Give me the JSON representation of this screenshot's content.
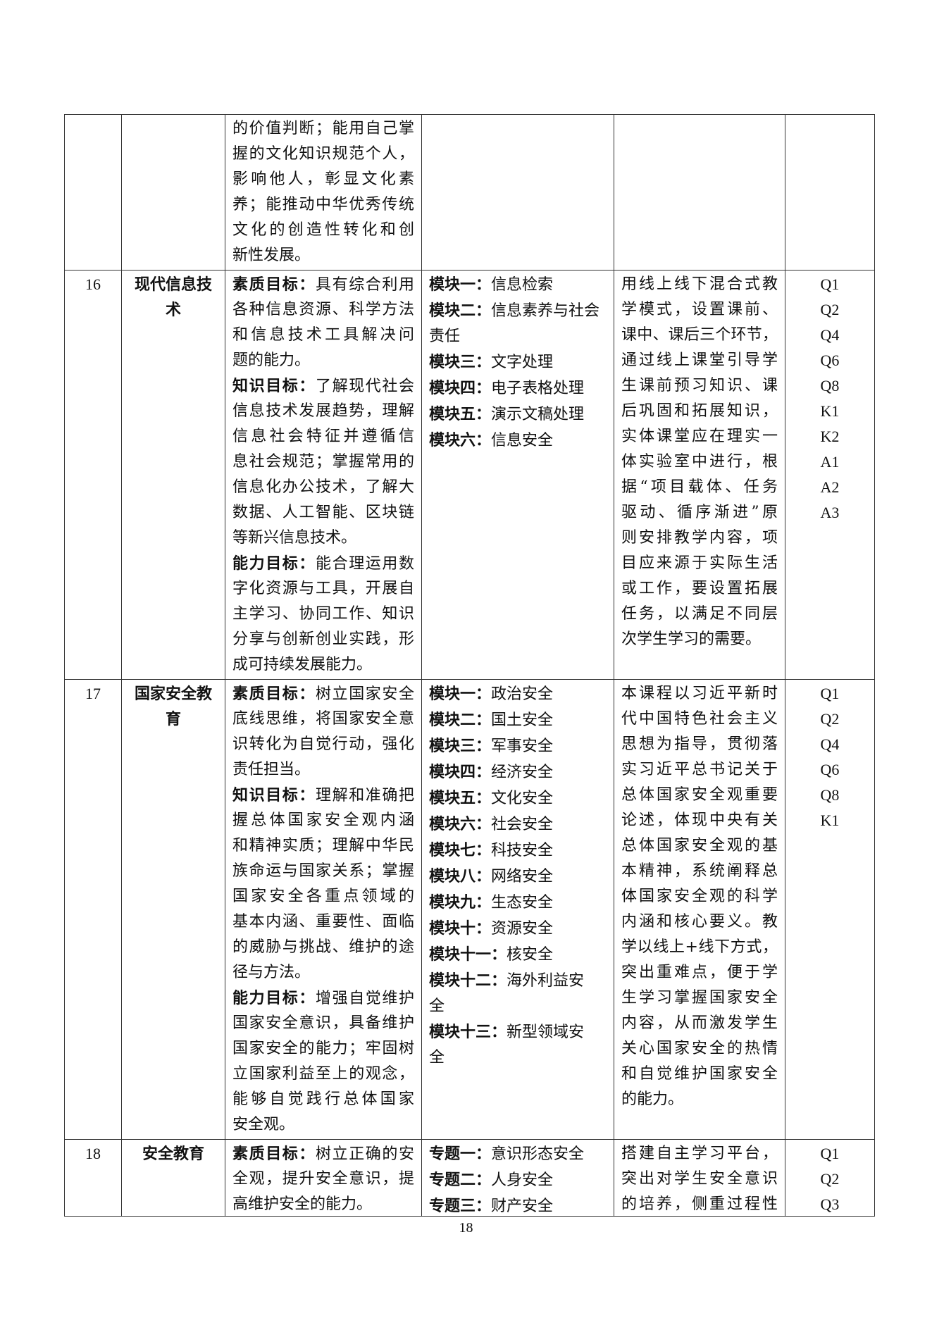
{
  "rows": [
    {
      "no": "",
      "name": "",
      "objectives": [
        {
          "b": "",
          "t": "的价值判断；能用自己掌"
        },
        {
          "b": "",
          "t": "握的文化知识规范个人，"
        },
        {
          "b": "",
          "t": "影响他人，彰显文化素"
        },
        {
          "b": "",
          "t": "养；能推动中华优秀传统"
        },
        {
          "b": "",
          "t": "文化的创造性转化和创"
        },
        {
          "b": "",
          "t": "新性发展。"
        }
      ],
      "modules": [],
      "method": [],
      "codes": []
    },
    {
      "no": "16",
      "name": "现代信息技术",
      "objectives": [
        {
          "b": "素质目标：",
          "t": "具有综合利用"
        },
        {
          "b": "",
          "t": "各种信息资源、科学方法"
        },
        {
          "b": "",
          "t": "和信息技术工具解决问"
        },
        {
          "b": "",
          "t": "题的能力。"
        },
        {
          "b": "知识目标：",
          "t": "了解现代社会"
        },
        {
          "b": "",
          "t": "信息技术发展趋势，理解"
        },
        {
          "b": "",
          "t": "信息社会特征并遵循信"
        },
        {
          "b": "",
          "t": "息社会规范；掌握常用的"
        },
        {
          "b": "",
          "t": "信息化办公技术，了解大"
        },
        {
          "b": "",
          "t": "数据、人工智能、区块链"
        },
        {
          "b": "",
          "t": "等新兴信息技术。"
        },
        {
          "b": "能力目标：",
          "t": "能合理运用数"
        },
        {
          "b": "",
          "t": "字化资源与工具，开展自"
        },
        {
          "b": "",
          "t": "主学习、协同工作、知识"
        },
        {
          "b": "",
          "t": "分享与创新创业实践，形"
        },
        {
          "b": "",
          "t": "成可持续发展能力。"
        }
      ],
      "modules": [
        {
          "b": "模块一：",
          "t": "信息检索"
        },
        {
          "b": "模块二：",
          "t": "信息素养与社会"
        },
        {
          "b": "",
          "t": "责任"
        },
        {
          "b": "模块三：",
          "t": "文字处理"
        },
        {
          "b": "模块四：",
          "t": "电子表格处理"
        },
        {
          "b": "模块五：",
          "t": "演示文稿处理"
        },
        {
          "b": "模块六：",
          "t": "信息安全"
        }
      ],
      "method": [
        "用线上线下混合式教",
        "学模式，设置课前、",
        "课中、课后三个环节，",
        "通过线上课堂引导学",
        "生课前预习知识、课",
        "后巩固和拓展知识，",
        "实体课堂应在理实一",
        "体实验室中进行，根",
        "据“项目载体、任务",
        "驱动、循序渐进”原",
        "则安排教学内容，项",
        "目应来源于实际生活",
        "或工作，要设置拓展",
        "任务，以满足不同层",
        "次学生学习的需要。"
      ],
      "codes": [
        "Q1",
        "Q2",
        "Q4",
        "Q6",
        "Q8",
        "K1",
        "K2",
        "A1",
        "A2",
        "A3"
      ]
    },
    {
      "no": "17",
      "name": "国家安全教育",
      "objectives": [
        {
          "b": "素质目标：",
          "t": "树立国家安全"
        },
        {
          "b": "",
          "t": "底线思维，将国家安全意"
        },
        {
          "b": "",
          "t": "识转化为自觉行动，强化"
        },
        {
          "b": "",
          "t": "责任担当。"
        },
        {
          "b": "知识目标：",
          "t": "理解和准确把"
        },
        {
          "b": "",
          "t": "握总体国家安全观内涵"
        },
        {
          "b": "",
          "t": "和精神实质；理解中华民"
        },
        {
          "b": "",
          "t": "族命运与国家关系；掌握"
        },
        {
          "b": "",
          "t": "国家安全各重点领域的"
        },
        {
          "b": "",
          "t": "基本内涵、重要性、面临"
        },
        {
          "b": "",
          "t": "的威胁与挑战、维护的途"
        },
        {
          "b": "",
          "t": "径与方法。"
        },
        {
          "b": "能力目标：",
          "t": "增强自觉维护"
        },
        {
          "b": "",
          "t": "国家安全意识，具备维护"
        },
        {
          "b": "",
          "t": "国家安全的能力；牢固树"
        },
        {
          "b": "",
          "t": "立国家利益至上的观念，"
        },
        {
          "b": "",
          "t": "能够自觉践行总体国家"
        },
        {
          "b": "",
          "t": "安全观。"
        }
      ],
      "modules": [
        {
          "b": "模块一：",
          "t": "政治安全"
        },
        {
          "b": "模块二：",
          "t": "国土安全"
        },
        {
          "b": "模块三：",
          "t": "军事安全"
        },
        {
          "b": "模块四：",
          "t": "经济安全"
        },
        {
          "b": "模块五：",
          "t": "文化安全"
        },
        {
          "b": "模块六：",
          "t": "社会安全"
        },
        {
          "b": "模块七：",
          "t": "科技安全"
        },
        {
          "b": "模块八：",
          "t": "网络安全"
        },
        {
          "b": "模块九：",
          "t": "生态安全"
        },
        {
          "b": "模块十：",
          "t": "资源安全"
        },
        {
          "b": "模块十一：",
          "t": "核安全"
        },
        {
          "b": "模块十二：",
          "t": "海外利益安"
        },
        {
          "b": "",
          "t": "全"
        },
        {
          "b": "模块十三：",
          "t": "新型领域安"
        },
        {
          "b": "",
          "t": "全"
        }
      ],
      "method": [
        "本课程以习近平新时",
        "代中国特色社会主义",
        "思想为指导，贯彻落",
        "实习近平总书记关于",
        "总体国家安全观重要",
        "论述，体现中央有关",
        "总体国家安全观的基",
        "本精神，系统阐释总",
        "体国家安全观的科学",
        "内涵和核心要义。教",
        "学以线上+线下方式，",
        "突出重难点，便于学",
        "生学习掌握国家安全",
        "内容，从而激发学生",
        "关心国家安全的热情",
        "和自觉维护国家安全",
        "的能力。"
      ],
      "codes": [
        "Q1",
        "Q2",
        "Q4",
        "Q6",
        "Q8",
        "K1"
      ]
    },
    {
      "no": "18",
      "name": "安全教育",
      "objectives": [
        {
          "b": "素质目标：",
          "t": "树立正确的安"
        },
        {
          "b": "",
          "t": "全观，提升安全意识，提"
        },
        {
          "b": "",
          "t": "高维护安全的能力。"
        }
      ],
      "modules": [
        {
          "b": "专题一：",
          "t": "意识形态安全"
        },
        {
          "b": "专题二：",
          "t": "人身安全"
        },
        {
          "b": "专题三：",
          "t": "财产安全"
        }
      ],
      "method": [
        "搭建自主学习平台，",
        "突出对学生安全意识",
        "的培养，侧重过程性"
      ],
      "codes": [
        "Q1",
        "Q2",
        "Q3"
      ]
    }
  ],
  "page_number": "18"
}
